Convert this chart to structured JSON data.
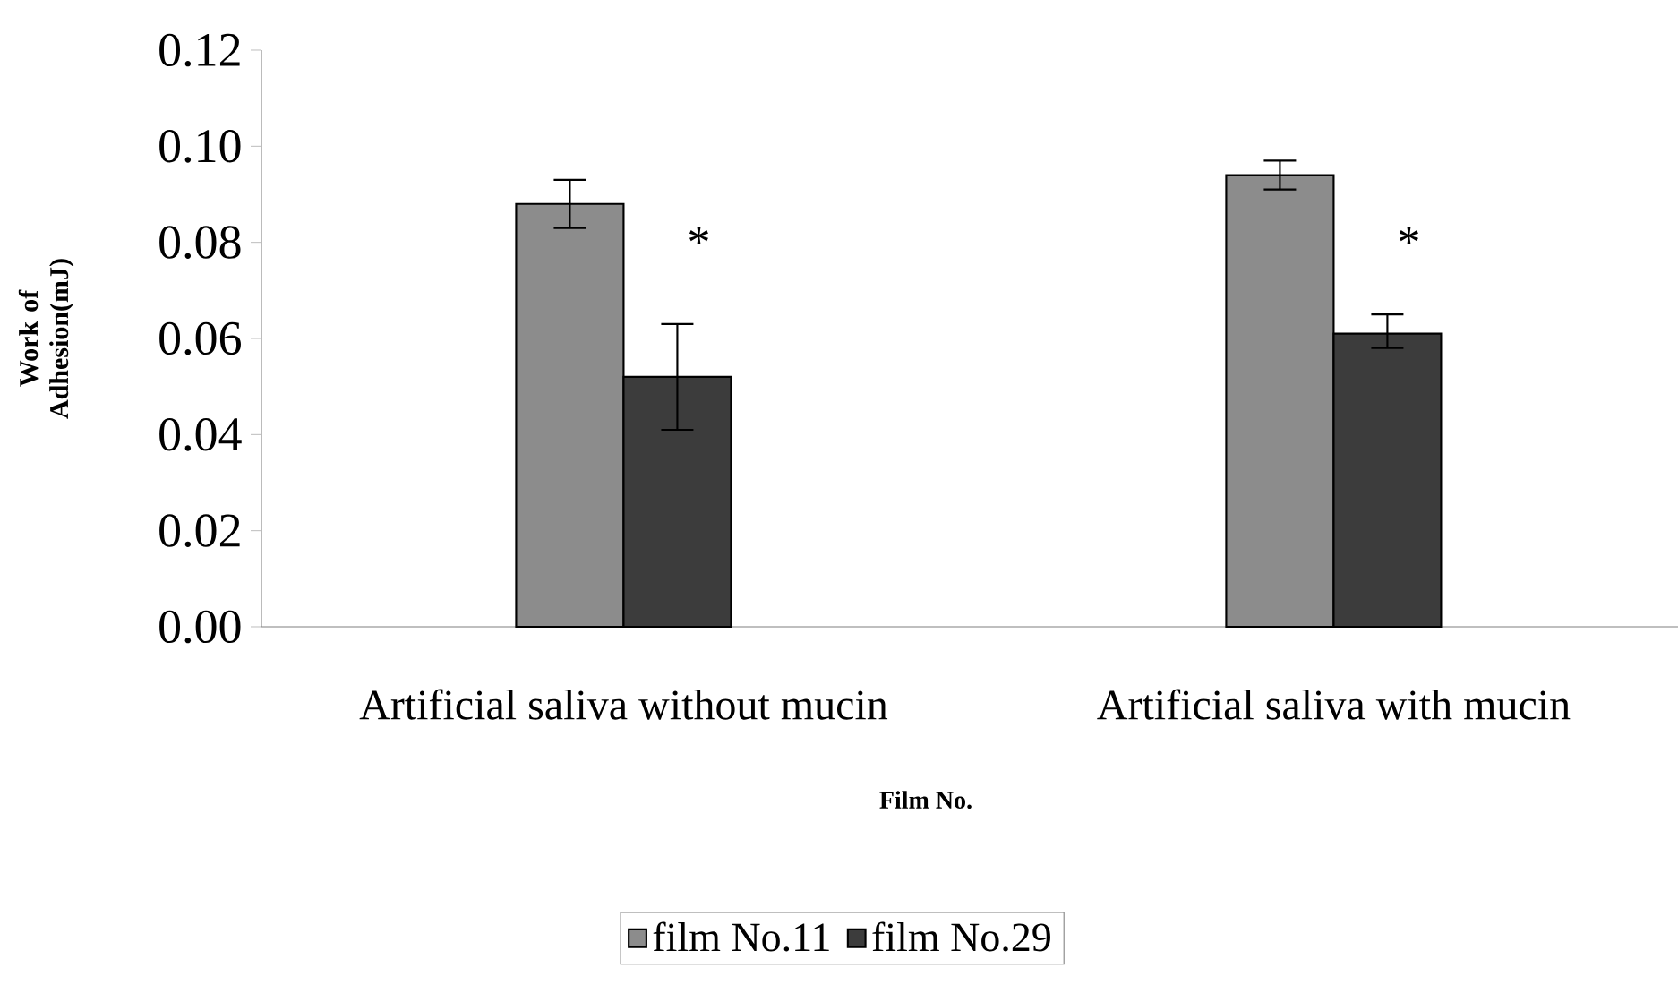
{
  "chart_data": {
    "type": "bar",
    "xlabel": "Film No.",
    "ylabel": "Work of Adhesion(mJ)",
    "categories": [
      "Artificial saliva without mucin",
      "Artificial saliva with mucin"
    ],
    "series": [
      {
        "name": "film No.11",
        "color": "#8c8c8c",
        "values": [
          0.088,
          0.094
        ],
        "errors": [
          [
            0.083,
            0.093
          ],
          [
            0.091,
            0.097
          ]
        ]
      },
      {
        "name": "film No.29",
        "color": "#3c3c3c",
        "values": [
          0.052,
          0.061
        ],
        "errors": [
          [
            0.041,
            0.063
          ],
          [
            0.058,
            0.065
          ]
        ]
      }
    ],
    "ylim": [
      0,
      0.12
    ],
    "yticks": [
      {
        "value": 0,
        "label": "0.00"
      },
      {
        "value": 0.02,
        "label": "0.02"
      },
      {
        "value": 0.04,
        "label": "0.04"
      },
      {
        "value": 0.06,
        "label": "0.06"
      },
      {
        "value": 0.08,
        "label": "0.08"
      },
      {
        "value": 0.1,
        "label": "0.10"
      },
      {
        "value": 0.12,
        "label": "0.12"
      }
    ],
    "annotations": [
      {
        "text": "*",
        "x": "Artificial saliva without mucin",
        "y": 0.08
      },
      {
        "text": "*",
        "x": "Artificial saliva with mucin",
        "y": 0.08
      }
    ],
    "grid": false,
    "legend": "bottom"
  }
}
